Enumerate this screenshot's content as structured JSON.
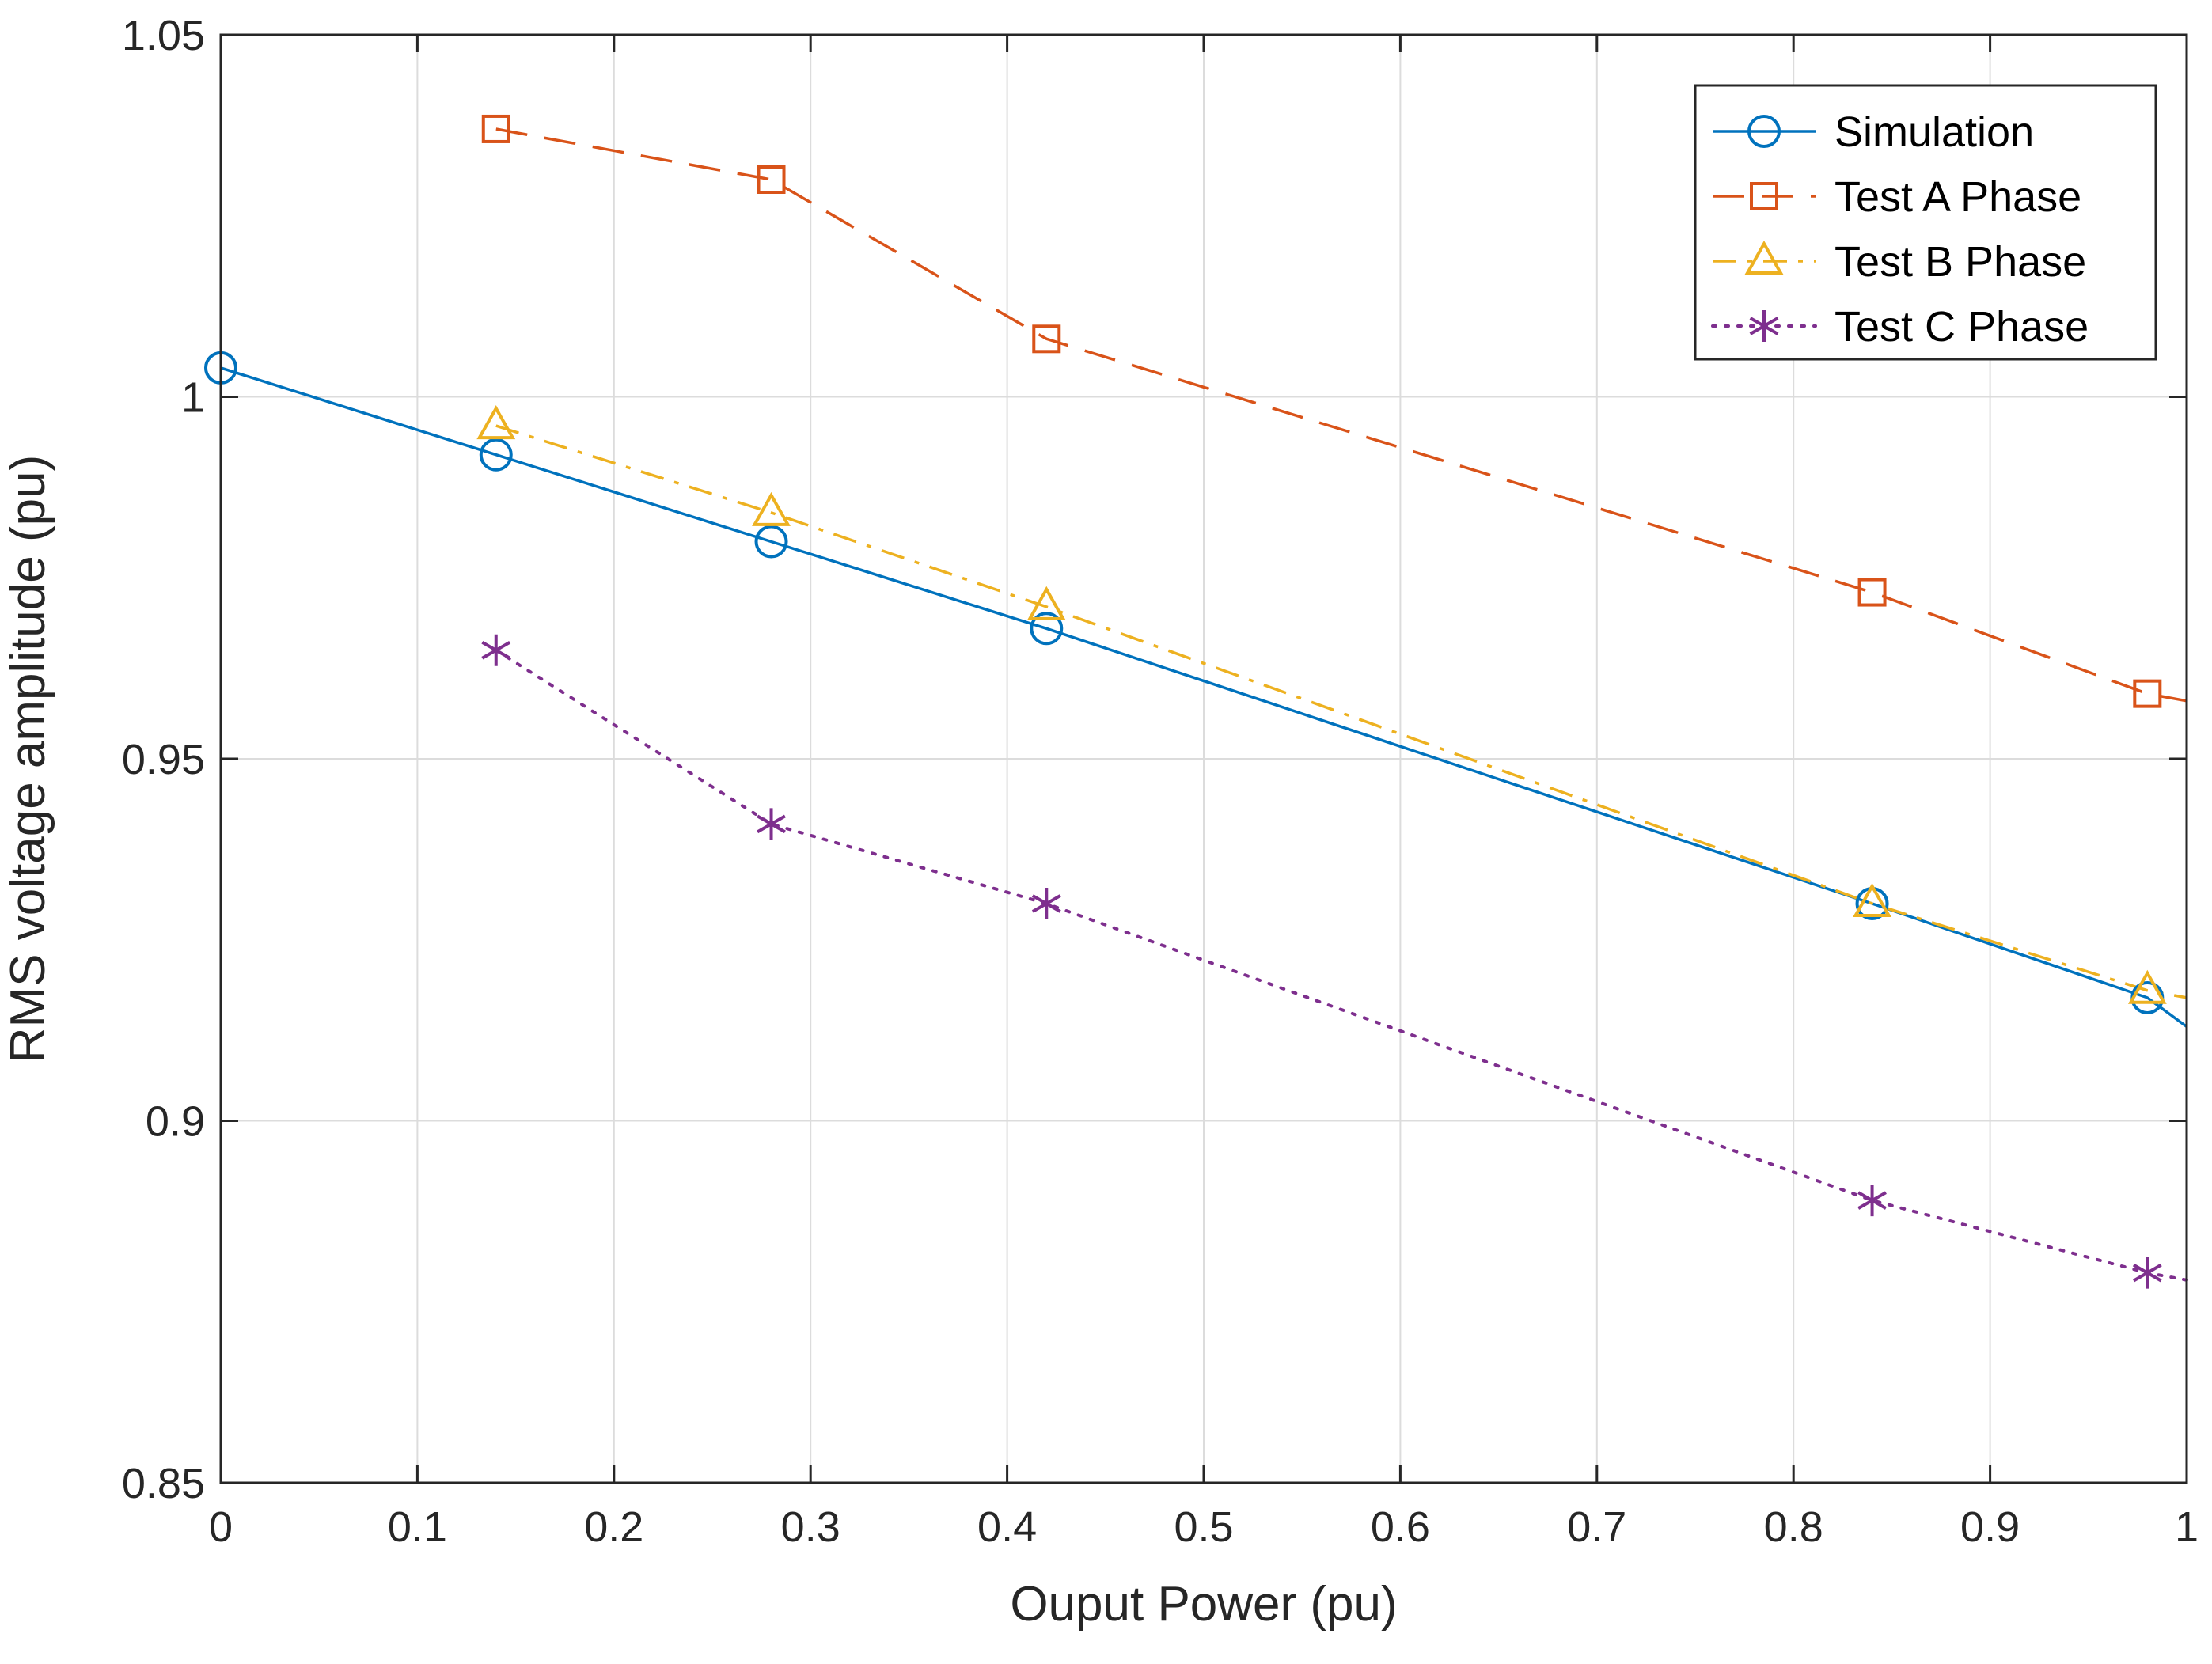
{
  "chart_data": {
    "type": "line",
    "title": "",
    "xlabel": "Ouput Power (pu)",
    "ylabel": "RMS voltage amplitude (pu)",
    "xlim": [
      0,
      1
    ],
    "ylim": [
      0.85,
      1.05
    ],
    "xticks": [
      "0",
      "0.1",
      "0.2",
      "0.3",
      "0.4",
      "0.5",
      "0.6",
      "0.7",
      "0.8",
      "0.9",
      "1"
    ],
    "yticks": [
      "0.85",
      "0.9",
      "0.95",
      "1",
      "1.05"
    ],
    "grid": true,
    "legend_position": "top-right",
    "series": [
      {
        "name": "Simulation",
        "color": "#0072BD",
        "line_style": "solid",
        "marker": "circle",
        "x": [
          0,
          0.14,
          0.28,
          0.42,
          0.84,
          0.98,
          1.0
        ],
        "y": [
          1.004,
          0.992,
          0.98,
          0.968,
          0.93,
          0.917,
          0.913
        ],
        "marker_x": [
          0,
          0.14,
          0.28,
          0.42,
          0.84,
          0.98
        ],
        "marker_y": [
          1.004,
          0.992,
          0.98,
          0.968,
          0.93,
          0.917
        ]
      },
      {
        "name": "Test A Phase",
        "color": "#D95319",
        "line_style": "dashed",
        "marker": "square",
        "x": [
          0.14,
          0.28,
          0.42,
          0.84,
          0.98,
          1.0
        ],
        "y": [
          1.037,
          1.03,
          1.008,
          0.973,
          0.959,
          0.958
        ],
        "marker_x": [
          0.14,
          0.28,
          0.42,
          0.84,
          0.98
        ],
        "marker_y": [
          1.037,
          1.03,
          1.008,
          0.973,
          0.959
        ]
      },
      {
        "name": "Test B Phase",
        "color": "#EDB120",
        "line_style": "dashdot",
        "marker": "triangle",
        "x": [
          0.14,
          0.28,
          0.42,
          0.84,
          0.98,
          1.0
        ],
        "y": [
          0.996,
          0.984,
          0.971,
          0.93,
          0.918,
          0.917
        ],
        "marker_x": [
          0.14,
          0.28,
          0.42,
          0.84,
          0.98
        ],
        "marker_y": [
          0.996,
          0.984,
          0.971,
          0.93,
          0.918
        ]
      },
      {
        "name": "Test C Phase",
        "color": "#7E2F8E",
        "line_style": "dotted",
        "marker": "asterisk",
        "x": [
          0.14,
          0.28,
          0.42,
          0.84,
          0.98,
          1.0
        ],
        "y": [
          0.965,
          0.941,
          0.93,
          0.889,
          0.879,
          0.878
        ],
        "marker_x": [
          0.14,
          0.28,
          0.42,
          0.84,
          0.98
        ],
        "marker_y": [
          0.965,
          0.941,
          0.93,
          0.889,
          0.879
        ]
      }
    ]
  }
}
